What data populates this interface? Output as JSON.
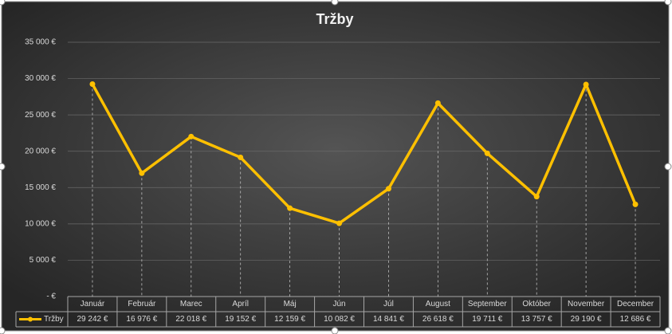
{
  "chart_data": {
    "type": "line",
    "title": "Tržby",
    "categories": [
      "Január",
      "Február",
      "Marec",
      "Apríl",
      "Máj",
      "Jún",
      "Júl",
      "August",
      "September",
      "Október",
      "November",
      "December"
    ],
    "series": [
      {
        "name": "Tržby",
        "color": "#ffc000",
        "values": [
          29242,
          16976,
          22018,
          19152,
          12159,
          10082,
          14841,
          26618,
          19711,
          13757,
          29190,
          12686
        ],
        "value_labels": [
          "29 242 €",
          "16 976 €",
          "22 018 €",
          "19 152 €",
          "12 159 €",
          "10 082 €",
          "14 841 €",
          "26 618 €",
          "19 711 €",
          "13 757 €",
          "29 190 €",
          "12 686 €"
        ]
      }
    ],
    "ylim": [
      0,
      35000
    ],
    "yticks": [
      {
        "value": 0,
        "label": "-   €"
      },
      {
        "value": 5000,
        "label": "5 000 €"
      },
      {
        "value": 10000,
        "label": "10 000 €"
      },
      {
        "value": 15000,
        "label": "15 000 €"
      },
      {
        "value": 20000,
        "label": "20 000 €"
      },
      {
        "value": 25000,
        "label": "25 000 €"
      },
      {
        "value": 30000,
        "label": "30 000 €"
      },
      {
        "value": 35000,
        "label": "35 000 €"
      }
    ],
    "grid": true,
    "drop_lines": true
  }
}
